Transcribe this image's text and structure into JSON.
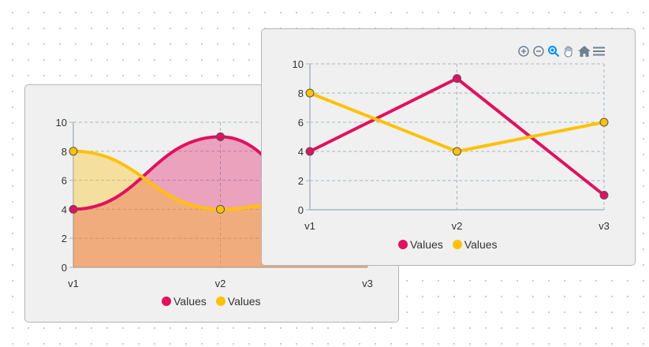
{
  "chart_data": [
    {
      "type": "area",
      "smooth": true,
      "categories": [
        "v1",
        "v2",
        "v3"
      ],
      "series": [
        {
          "name": "Values",
          "values": [
            4,
            9,
            1
          ],
          "color": "#e0115f"
        },
        {
          "name": "Values",
          "values": [
            8,
            4,
            6
          ],
          "color": "#ffc107"
        }
      ],
      "ylim": [
        0,
        10
      ],
      "yticks": [
        "0",
        "2",
        "4",
        "6",
        "8",
        "10"
      ],
      "grid": true,
      "legend": "bottom"
    },
    {
      "type": "line",
      "smooth": false,
      "categories": [
        "v1",
        "v2",
        "v3"
      ],
      "series": [
        {
          "name": "Values",
          "values": [
            4,
            9,
            1
          ],
          "color": "#e0115f"
        },
        {
          "name": "Values",
          "values": [
            8,
            4,
            6
          ],
          "color": "#ffc107"
        }
      ],
      "ylim": [
        0,
        10
      ],
      "yticks": [
        "0",
        "2",
        "4",
        "6",
        "8",
        "10"
      ],
      "grid": true,
      "legend": "bottom"
    }
  ],
  "toolbar": {
    "icons": [
      "zoom-in-icon",
      "zoom-out-icon",
      "selection-zoom-icon",
      "pan-icon",
      "home-icon",
      "menu-icon"
    ]
  }
}
